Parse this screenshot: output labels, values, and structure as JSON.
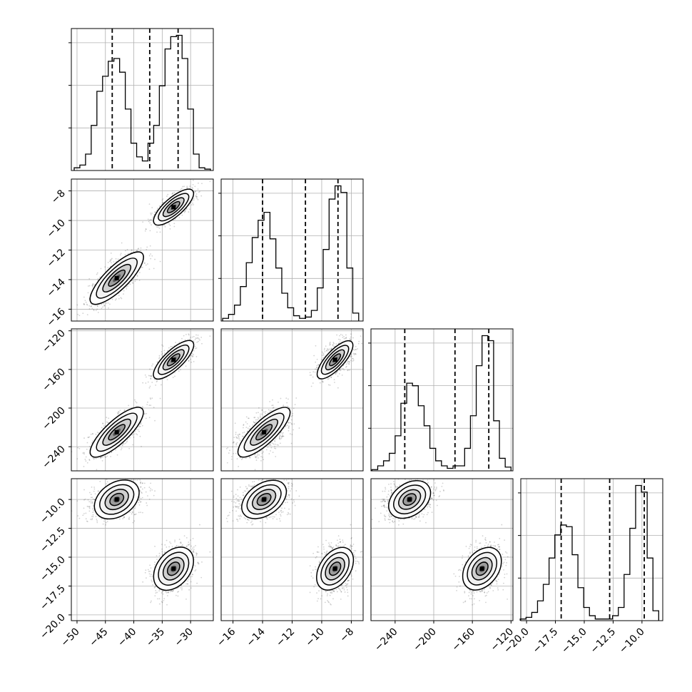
{
  "chart_data": {
    "type": "corner",
    "parameters": [
      {
        "id": "p1",
        "xlim": [
          -51,
          -26
        ],
        "ticks": [
          -50,
          -45,
          -40,
          -35,
          -30
        ],
        "tick_labels": [
          "−50",
          "−45",
          "−40",
          "−35",
          "−30"
        ],
        "quantiles": [
          -43.8,
          -37.2,
          -32.2
        ],
        "hist_centers": [
          -50.0,
          -49.0,
          -48.0,
          -47.0,
          -46.0,
          -45.0,
          -44.0,
          -43.0,
          -42.0,
          -41.0,
          -40.0,
          -39.0,
          -38.0,
          -37.0,
          -36.0,
          -35.0,
          -34.0,
          -33.0,
          -32.0,
          -31.0,
          -30.0,
          -29.0,
          -28.0,
          -27.0
        ],
        "hist_counts": [
          0.02,
          0.04,
          0.12,
          0.33,
          0.58,
          0.69,
          0.8,
          0.82,
          0.72,
          0.45,
          0.2,
          0.1,
          0.07,
          0.2,
          0.33,
          0.62,
          0.89,
          0.98,
          0.99,
          0.82,
          0.45,
          0.12,
          0.02,
          0.01
        ]
      },
      {
        "id": "p2",
        "xlim": [
          -16.8,
          -7.2
        ],
        "ticks": [
          -16,
          -14,
          -12,
          -10,
          -8
        ],
        "tick_labels": [
          "−16",
          "−14",
          "−12",
          "−10",
          "−8"
        ],
        "quantiles": [
          -14.0,
          -11.1,
          -8.9
        ],
        "hist_centers": [
          -16.5,
          -16.1,
          -15.7,
          -15.3,
          -14.9,
          -14.5,
          -14.1,
          -13.7,
          -13.3,
          -12.9,
          -12.5,
          -12.1,
          -11.7,
          -11.3,
          -10.9,
          -10.5,
          -10.1,
          -9.7,
          -9.3,
          -8.9,
          -8.5,
          -8.1,
          -7.7
        ],
        "hist_counts": [
          0.02,
          0.05,
          0.12,
          0.26,
          0.44,
          0.63,
          0.76,
          0.82,
          0.62,
          0.4,
          0.21,
          0.1,
          0.04,
          0.02,
          0.03,
          0.08,
          0.25,
          0.54,
          0.92,
          1.02,
          0.97,
          0.4,
          0.06
        ]
      },
      {
        "id": "p3",
        "xlim": [
          -265,
          -118
        ],
        "ticks": [
          -240,
          -200,
          -160,
          -120
        ],
        "tick_labels": [
          "−240",
          "−200",
          "−160",
          "−120"
        ],
        "quantiles": [
          -230.0,
          -178.0,
          -143.0
        ],
        "hist_centers": [
          -261,
          -255,
          -249,
          -243,
          -237,
          -231,
          -225,
          -219,
          -213,
          -207,
          -201,
          -195,
          -189,
          -183,
          -177,
          -171,
          -165,
          -159,
          -153,
          -147,
          -141,
          -135,
          -129,
          -123
        ],
        "hist_counts": [
          0.01,
          0.04,
          0.08,
          0.14,
          0.28,
          0.54,
          0.7,
          0.68,
          0.52,
          0.36,
          0.18,
          0.08,
          0.04,
          0.02,
          0.04,
          0.04,
          0.18,
          0.44,
          0.84,
          1.08,
          1.04,
          0.4,
          0.1,
          0.03
        ]
      },
      {
        "id": "p4",
        "xlim": [
          -20.5,
          -8.2
        ],
        "ticks": [
          -20.0,
          -17.5,
          -15.0,
          -12.5,
          -10.0
        ],
        "tick_labels": [
          "−20.0",
          "−17.5",
          "−15.0",
          "−12.5",
          "−10.0"
        ],
        "quantiles": [
          -17.0,
          -12.8,
          -9.8
        ],
        "hist_centers": [
          -20.3,
          -19.8,
          -19.3,
          -18.8,
          -18.3,
          -17.8,
          -17.3,
          -16.8,
          -16.3,
          -15.8,
          -15.3,
          -14.8,
          -14.3,
          -13.8,
          -13.3,
          -12.8,
          -12.3,
          -11.8,
          -11.3,
          -10.8,
          -10.3,
          -9.8,
          -9.3,
          -8.8
        ],
        "hist_counts": [
          0.01,
          0.02,
          0.05,
          0.12,
          0.22,
          0.38,
          0.52,
          0.58,
          0.57,
          0.4,
          0.2,
          0.08,
          0.03,
          0.01,
          0.01,
          0.01,
          0.03,
          0.08,
          0.28,
          0.56,
          0.82,
          0.78,
          0.38,
          0.06
        ]
      }
    ],
    "modes": [
      {
        "center": [
          -43.0,
          -13.9,
          -225.0,
          -10.0
        ],
        "sd": [
          2.4,
          0.9,
          13.0,
          0.8
        ]
      },
      {
        "center": [
          -33.0,
          -9.1,
          -150.0,
          -16.0
        ],
        "sd": [
          1.8,
          0.6,
          10.0,
          1.1
        ]
      }
    ],
    "correlations": [
      [
        1.0,
        0.75,
        0.75,
        0.35
      ],
      [
        0.75,
        1.0,
        0.75,
        0.4
      ],
      [
        0.75,
        0.75,
        1.0,
        0.35
      ],
      [
        0.35,
        0.4,
        0.35,
        1.0
      ]
    ],
    "samples_per_mode": 1600,
    "grid": true,
    "colors": {
      "points": "#000000",
      "contour_fills": [
        "#ffffff",
        "#f2f2f2",
        "#cfcfcf",
        "#9c9c9c",
        "#5a5a5a",
        "#000000"
      ]
    }
  }
}
